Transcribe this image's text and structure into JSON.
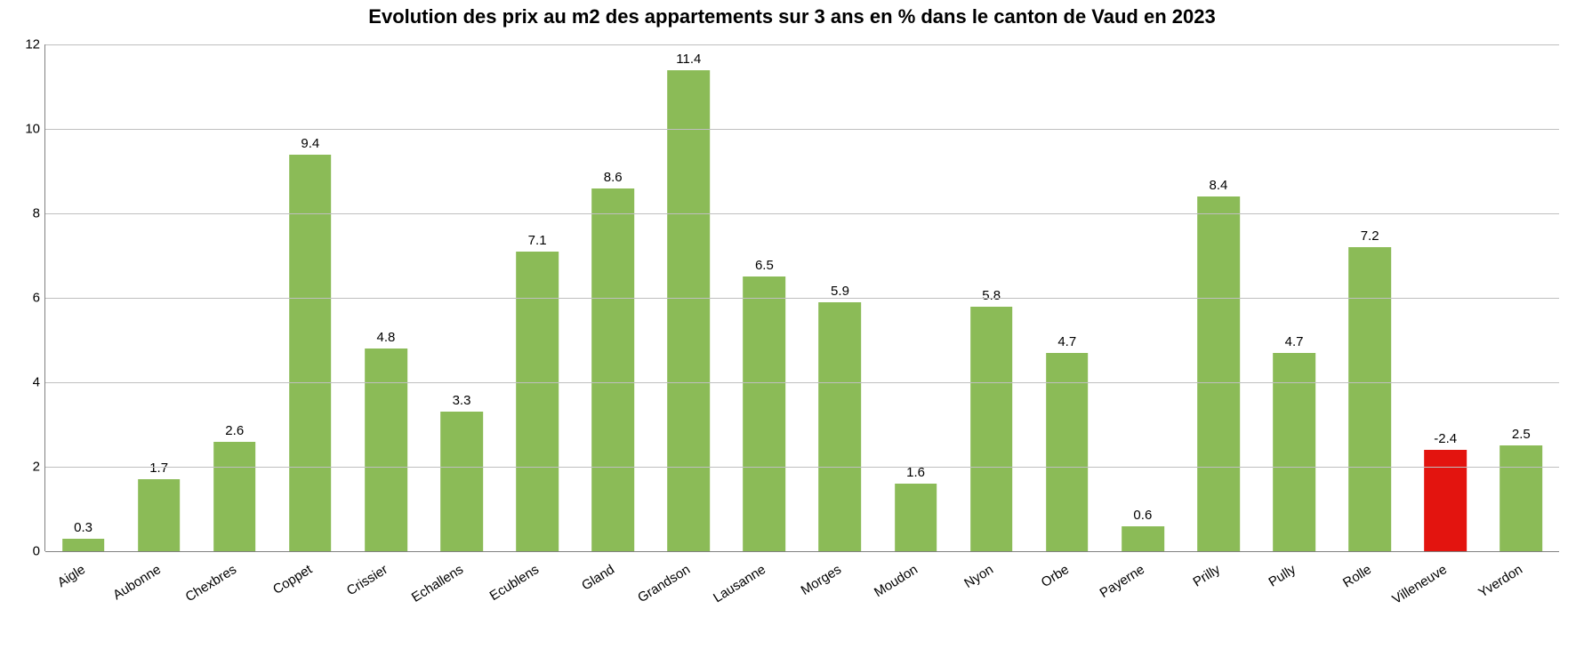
{
  "chart": {
    "type": "bar",
    "title": "Evolution des prix au m2 des appartements sur 3 ans en % dans le canton de Vaud en 2023",
    "title_fontsize": 22,
    "title_fontweight": "bold",
    "background_color": "#ffffff",
    "grid_color": "#bfbfbf",
    "axis_color": "#808080",
    "tick_fontsize": 15,
    "value_label_fontsize": 15,
    "x_label_fontsize": 15,
    "x_label_rotation_deg": -32,
    "ylim": [
      0,
      12
    ],
    "ytick_step": 2,
    "yticks": [
      "0",
      "2",
      "4",
      "6",
      "8",
      "10",
      "12"
    ],
    "bar_width_ratio": 0.56,
    "categories": [
      "Aigle",
      "Aubonne",
      "Chexbres",
      "Coppet",
      "Crissier",
      "Echallens",
      "Ecublens",
      "Gland",
      "Grandson",
      "Lausanne",
      "Morges",
      "Moudon",
      "Nyon",
      "Orbe",
      "Payerne",
      "Prilly",
      "Pully",
      "Rolle",
      "Villeneuve",
      "Yverdon"
    ],
    "values": [
      0.3,
      1.7,
      2.6,
      9.4,
      4.8,
      3.3,
      7.1,
      8.6,
      11.4,
      6.5,
      5.9,
      1.6,
      5.8,
      4.7,
      0.6,
      8.4,
      4.7,
      7.2,
      -2.4,
      2.5
    ],
    "bar_colors": [
      "#8bbb57",
      "#8bbb57",
      "#8bbb57",
      "#8bbb57",
      "#8bbb57",
      "#8bbb57",
      "#8bbb57",
      "#8bbb57",
      "#8bbb57",
      "#8bbb57",
      "#8bbb57",
      "#8bbb57",
      "#8bbb57",
      "#8bbb57",
      "#8bbb57",
      "#8bbb57",
      "#8bbb57",
      "#8bbb57",
      "#e3140f",
      "#8bbb57"
    ]
  }
}
